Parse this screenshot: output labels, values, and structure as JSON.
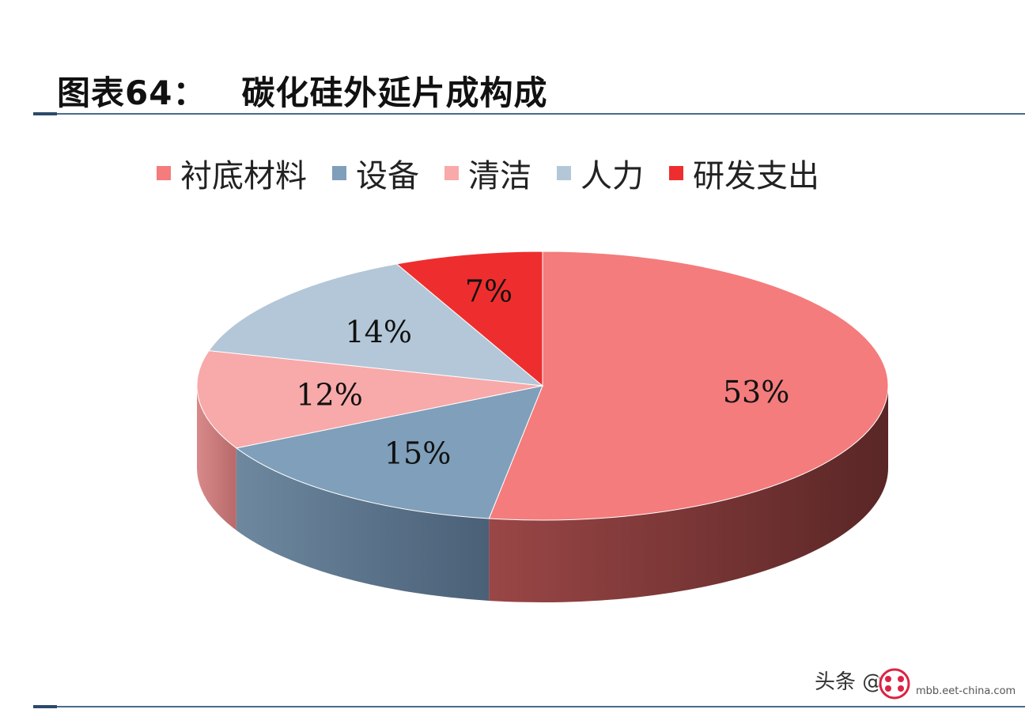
{
  "header": {
    "figure_number": "图表64：",
    "figure_title": "碳化硅外延片成构成"
  },
  "colors": {
    "rule": "#4a6a8a",
    "accent": "#2c4a6a"
  },
  "chart_data": {
    "type": "pie",
    "style": "3d",
    "title": "",
    "legend_position": "top",
    "slices": [
      {
        "name": "衬底材料",
        "value": 53,
        "label": "53%",
        "color": "#f47c7c",
        "side_color": "#8a3a3a"
      },
      {
        "name": "设备",
        "value": 15,
        "label": "15%",
        "color": "#7f9fba",
        "side_color": "#5a7088"
      },
      {
        "name": "清洁",
        "value": 12,
        "label": "12%",
        "color": "#f8a9a9",
        "side_color": "#c87a7a"
      },
      {
        "name": "人力",
        "value": 14,
        "label": "14%",
        "color": "#b3c7d8",
        "side_color": "#8a9cab"
      },
      {
        "name": "研发支出",
        "value": 7,
        "label": "7%",
        "color": "#ee2e2e",
        "side_color": "#9a1a1a"
      }
    ]
  },
  "watermark": {
    "text": "头条 @",
    "badge_text": "mbb.eet-china.com"
  }
}
